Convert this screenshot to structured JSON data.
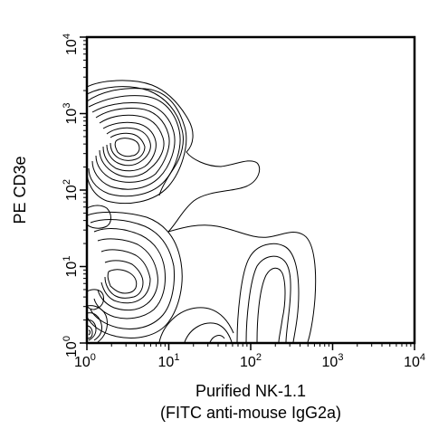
{
  "chart_data": {
    "type": "contour",
    "title": "",
    "xlabel": "Purified NK-1.1",
    "xlabel_line2": "(FITC anti-mouse IgG2a)",
    "ylabel": "PE CD3e",
    "xscale": "log",
    "yscale": "log",
    "xlim": [
      1,
      10000
    ],
    "ylim": [
      1,
      10000
    ],
    "x_ticks": [
      {
        "base": "10",
        "exp": "0"
      },
      {
        "base": "10",
        "exp": "1"
      },
      {
        "base": "10",
        "exp": "2"
      },
      {
        "base": "10",
        "exp": "3"
      },
      {
        "base": "10",
        "exp": "4"
      }
    ],
    "y_ticks": [
      {
        "base": "10",
        "exp": "0"
      },
      {
        "base": "10",
        "exp": "1"
      },
      {
        "base": "10",
        "exp": "2"
      },
      {
        "base": "10",
        "exp": "3"
      },
      {
        "base": "10",
        "exp": "4"
      }
    ],
    "grid": false,
    "populations": [
      {
        "x": 3,
        "y": 300,
        "levels": 9
      },
      {
        "x": 3,
        "y": 2,
        "levels": 10
      },
      {
        "x": 1.1,
        "y": 1.2,
        "levels": 5
      },
      {
        "x": 200,
        "y": 2,
        "levels": 4
      }
    ],
    "line_color": "#000000"
  }
}
